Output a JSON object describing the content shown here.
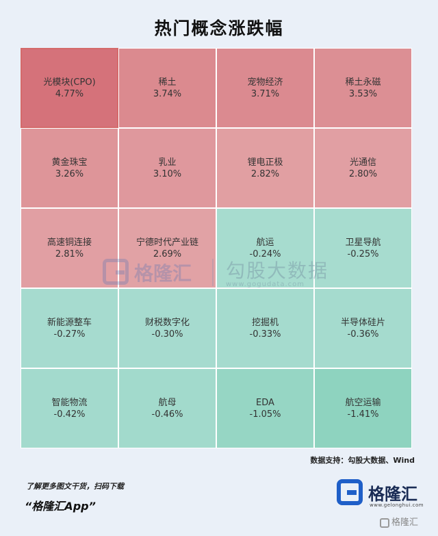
{
  "title": "热门概念涨跌幅",
  "chart_data": {
    "type": "heatmap",
    "title": "热门概念涨跌幅",
    "unit": "%",
    "cells": [
      {
        "name": "光模块(CPO)",
        "label": "4.77%",
        "value": 4.77
      },
      {
        "name": "稀土",
        "label": "3.74%",
        "value": 3.74
      },
      {
        "name": "宠物经济",
        "label": "3.71%",
        "value": 3.71
      },
      {
        "name": "稀土永磁",
        "label": "3.53%",
        "value": 3.53
      },
      {
        "name": "黄金珠宝",
        "label": "3.26%",
        "value": 3.26
      },
      {
        "name": "乳业",
        "label": "3.10%",
        "value": 3.1
      },
      {
        "name": "锂电正极",
        "label": "2.82%",
        "value": 2.82
      },
      {
        "name": "光通信",
        "label": "2.80%",
        "value": 2.8
      },
      {
        "name": "高速铜连接",
        "label": "2.81%",
        "value": 2.81
      },
      {
        "name": "宁德时代产业链",
        "label": "2.69%",
        "value": 2.69
      },
      {
        "name": "航运",
        "label": "-0.24%",
        "value": -0.24
      },
      {
        "name": "卫星导航",
        "label": "-0.25%",
        "value": -0.25
      },
      {
        "name": "新能源整车",
        "label": "-0.27%",
        "value": -0.27
      },
      {
        "name": "财税数字化",
        "label": "-0.30%",
        "value": -0.3
      },
      {
        "name": "挖掘机",
        "label": "-0.33%",
        "value": -0.33
      },
      {
        "name": "半导体硅片",
        "label": "-0.36%",
        "value": -0.36
      },
      {
        "name": "智能物流",
        "label": "-0.42%",
        "value": -0.42
      },
      {
        "name": "航母",
        "label": "-0.46%",
        "value": -0.46
      },
      {
        "name": "EDA",
        "label": "-1.05%",
        "value": -1.05
      },
      {
        "name": "航空运输",
        "label": "-1.41%",
        "value": -1.41
      }
    ],
    "grid": {
      "rows": 5,
      "cols": 4
    },
    "colors": {
      "up": "#d5727a",
      "up_light": "#e2a4a7",
      "down": "#a8dcd0",
      "down_dark": "#8ed3bf"
    }
  },
  "watermark": {
    "brand": "格隆汇",
    "data": "勾股大数据",
    "url": "www.gogudata.com"
  },
  "source": "数据支持：勾股大数据、Wind",
  "promo": {
    "line1": "了解更多图文干货，扫码下载",
    "line2": "“格隆汇App”"
  },
  "brand": {
    "name": "格隆汇",
    "url": "www.gelonghui.com"
  },
  "corner": "格隆汇"
}
